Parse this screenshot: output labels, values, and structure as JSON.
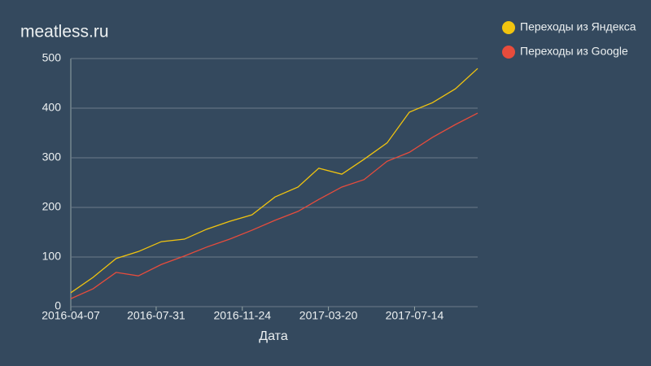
{
  "chart_data": {
    "type": "line",
    "title": "meatless.ru",
    "x_label": "Дата",
    "x": [
      "2016-04-07",
      "2016-05-07",
      "2016-06-07",
      "2016-07-07",
      "2016-08-07",
      "2016-09-07",
      "2016-10-07",
      "2016-11-07",
      "2016-12-07",
      "2017-01-07",
      "2017-02-07",
      "2017-03-07",
      "2017-04-07",
      "2017-05-07",
      "2017-06-07",
      "2017-07-07",
      "2017-08-07",
      "2017-09-07",
      "2017-10-07"
    ],
    "series": [
      {
        "name": "Переходы из Яндекса",
        "color": "#f1c40f",
        "values": [
          28,
          59,
          97,
          111,
          131,
          136,
          156,
          172,
          185,
          221,
          241,
          279,
          267,
          297,
          330,
          392,
          411,
          439,
          480
        ]
      },
      {
        "name": "Переходы из Google",
        "color": "#e74c3c",
        "values": [
          16,
          36,
          69,
          62,
          85,
          102,
          120,
          136,
          154,
          174,
          192,
          216,
          241,
          256,
          293,
          311,
          341,
          367,
          390
        ]
      }
    ],
    "xlim": [
      "2016-04-07",
      "2017-10-07"
    ],
    "xticks": [
      "2016-04-07",
      "2016-07-31",
      "2016-11-24",
      "2017-03-20",
      "2017-07-14"
    ],
    "ylim": [
      0,
      500
    ],
    "yticks": [
      0,
      100,
      200,
      300,
      400,
      500
    ],
    "grid": true
  }
}
